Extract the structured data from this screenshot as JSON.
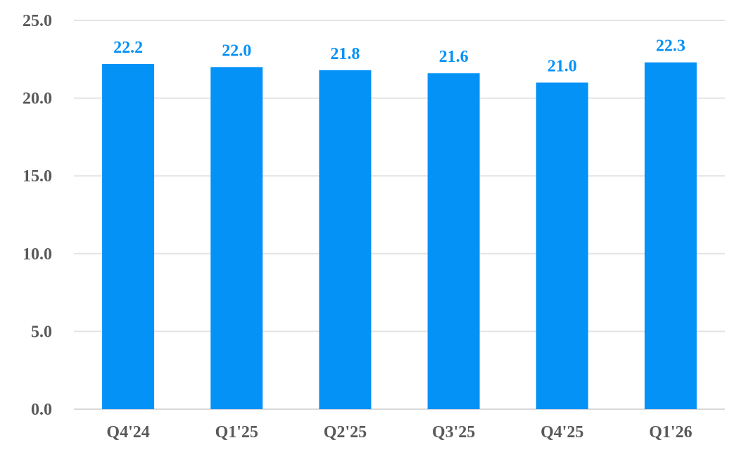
{
  "chart_data": {
    "type": "bar",
    "categories": [
      "Q4'24",
      "Q1'25",
      "Q2'25",
      "Q3'25",
      "Q4'25",
      "Q1'26"
    ],
    "values": [
      22.2,
      22.0,
      21.8,
      21.6,
      21.0,
      22.3
    ],
    "data_labels": [
      "22.2",
      "22.0",
      "21.8",
      "21.6",
      "21.0",
      "22.3"
    ],
    "title": "",
    "xlabel": "",
    "ylabel": "",
    "ylim": [
      0,
      25
    ],
    "yticks": [
      0,
      5,
      10,
      15,
      20,
      25
    ],
    "ytick_labels": [
      "0.0",
      "5.0",
      "10.0",
      "15.0",
      "20.0",
      "25.0"
    ],
    "grid": "horizontal",
    "legend": "none",
    "colors": {
      "bar": "#0592F7",
      "data_label": "#0592F7",
      "tick_label": "#595959",
      "grid": "#E4E4E4",
      "axis": "#D9D9D9"
    }
  }
}
